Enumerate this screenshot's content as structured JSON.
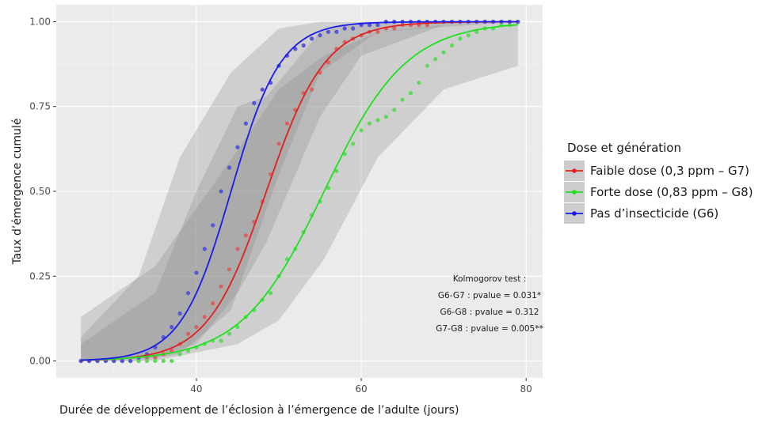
{
  "chart_data": {
    "type": "scatter",
    "xlabel": "Durée de développement de l’éclosion à l’émergence de l’adulte (jours)",
    "ylabel": "Taux d’émergence cumulé",
    "xlim": [
      23,
      82
    ],
    "ylim": [
      -0.05,
      1.05
    ],
    "x_ticks": [
      40,
      60,
      80
    ],
    "y_ticks": [
      0.0,
      0.25,
      0.5,
      0.75,
      1.0
    ],
    "y_tick_labels": [
      "0.00",
      "0.25",
      "0.50",
      "0.75",
      "1.00"
    ],
    "grid": true,
    "background": "#ebebeb",
    "legend": {
      "title": "Dose et génération",
      "position": "right"
    },
    "series": [
      {
        "name": "Faible dose (0,3 ppm – G7)",
        "color": "#e0201f",
        "point_color": "#d56565",
        "fit_midpoint": 48.5,
        "fit_slope": 0.28,
        "ci_band": [
          [
            26,
            0.0,
            0.05
          ],
          [
            35,
            0.01,
            0.2
          ],
          [
            40,
            0.05,
            0.5
          ],
          [
            45,
            0.2,
            0.75
          ],
          [
            48.5,
            0.35,
            0.78
          ],
          [
            55,
            0.72,
            0.97
          ],
          [
            60,
            0.9,
            1.0
          ],
          [
            70,
            0.99,
            1.0
          ],
          [
            79,
            1.0,
            1.0
          ]
        ],
        "points": [
          [
            26,
            0
          ],
          [
            27,
            0
          ],
          [
            28,
            0
          ],
          [
            29,
            0
          ],
          [
            30,
            0
          ],
          [
            31,
            0
          ],
          [
            32,
            0
          ],
          [
            33,
            0
          ],
          [
            34,
            0.01
          ],
          [
            35,
            0.01
          ],
          [
            36,
            0.02
          ],
          [
            37,
            0.03
          ],
          [
            38,
            0.05
          ],
          [
            39,
            0.08
          ],
          [
            40,
            0.1
          ],
          [
            41,
            0.13
          ],
          [
            42,
            0.17
          ],
          [
            43,
            0.22
          ],
          [
            44,
            0.27
          ],
          [
            45,
            0.33
          ],
          [
            46,
            0.37
          ],
          [
            47,
            0.41
          ],
          [
            48,
            0.47
          ],
          [
            49,
            0.55
          ],
          [
            50,
            0.64
          ],
          [
            51,
            0.7
          ],
          [
            52,
            0.74
          ],
          [
            53,
            0.79
          ],
          [
            54,
            0.8
          ],
          [
            55,
            0.85
          ],
          [
            56,
            0.88
          ],
          [
            57,
            0.92
          ],
          [
            58,
            0.94
          ],
          [
            59,
            0.95
          ],
          [
            60,
            0.96
          ],
          [
            61,
            0.97
          ],
          [
            62,
            0.97
          ],
          [
            63,
            0.98
          ],
          [
            64,
            0.98
          ],
          [
            65,
            0.99
          ],
          [
            66,
            0.99
          ],
          [
            67,
            0.99
          ],
          [
            68,
            0.99
          ],
          [
            69,
            1.0
          ],
          [
            70,
            1.0
          ],
          [
            71,
            1.0
          ],
          [
            72,
            1.0
          ],
          [
            73,
            1.0
          ],
          [
            74,
            1.0
          ],
          [
            75,
            1.0
          ],
          [
            76,
            1.0
          ],
          [
            77,
            1.0
          ],
          [
            78,
            1.0
          ],
          [
            79,
            1.0
          ]
        ]
      },
      {
        "name": "Forte dose (0,83 ppm – G8)",
        "color": "#1ee01e",
        "point_color": "#5ed95e",
        "fit_midpoint": 55.5,
        "fit_slope": 0.2,
        "ci_band": [
          [
            26,
            0.0,
            0.13
          ],
          [
            35,
            0.0,
            0.28
          ],
          [
            45,
            0.05,
            0.62
          ],
          [
            50,
            0.12,
            0.8
          ],
          [
            55.5,
            0.3,
            0.9
          ],
          [
            62,
            0.6,
            0.97
          ],
          [
            70,
            0.8,
            0.99
          ],
          [
            79,
            0.87,
            1.0
          ]
        ],
        "points": [
          [
            26,
            0
          ],
          [
            27,
            0
          ],
          [
            28,
            0
          ],
          [
            29,
            0
          ],
          [
            30,
            0
          ],
          [
            31,
            0
          ],
          [
            32,
            0
          ],
          [
            33,
            0
          ],
          [
            34,
            0
          ],
          [
            35,
            0
          ],
          [
            36,
            0
          ],
          [
            37,
            0
          ],
          [
            38,
            0.02
          ],
          [
            39,
            0.03
          ],
          [
            40,
            0.04
          ],
          [
            41,
            0.05
          ],
          [
            42,
            0.06
          ],
          [
            43,
            0.06
          ],
          [
            44,
            0.08
          ],
          [
            45,
            0.1
          ],
          [
            46,
            0.13
          ],
          [
            47,
            0.15
          ],
          [
            48,
            0.18
          ],
          [
            49,
            0.2
          ],
          [
            50,
            0.25
          ],
          [
            51,
            0.3
          ],
          [
            52,
            0.33
          ],
          [
            53,
            0.38
          ],
          [
            54,
            0.43
          ],
          [
            55,
            0.47
          ],
          [
            56,
            0.51
          ],
          [
            57,
            0.56
          ],
          [
            58,
            0.61
          ],
          [
            59,
            0.64
          ],
          [
            60,
            0.68
          ],
          [
            61,
            0.7
          ],
          [
            62,
            0.71
          ],
          [
            63,
            0.72
          ],
          [
            64,
            0.74
          ],
          [
            65,
            0.77
          ],
          [
            66,
            0.79
          ],
          [
            67,
            0.82
          ],
          [
            68,
            0.87
          ],
          [
            69,
            0.89
          ],
          [
            70,
            0.91
          ],
          [
            71,
            0.93
          ],
          [
            72,
            0.95
          ],
          [
            73,
            0.96
          ],
          [
            74,
            0.97
          ],
          [
            75,
            0.98
          ],
          [
            76,
            0.98
          ],
          [
            77,
            0.99
          ],
          [
            78,
            0.99
          ],
          [
            79,
            1.0
          ]
        ]
      },
      {
        "name": "Pas d’insecticide (G6)",
        "color": "#1a1aee",
        "point_color": "#5555d9",
        "fit_midpoint": 44.2,
        "fit_slope": 0.33,
        "ci_band": [
          [
            26,
            0.0,
            0.07
          ],
          [
            33,
            0.0,
            0.25
          ],
          [
            38,
            0.02,
            0.6
          ],
          [
            44.2,
            0.15,
            0.85
          ],
          [
            50,
            0.55,
            0.98
          ],
          [
            55,
            0.85,
            1.0
          ],
          [
            62,
            0.97,
            1.0
          ],
          [
            79,
            1.0,
            1.0
          ]
        ],
        "points": [
          [
            26,
            0
          ],
          [
            27,
            0
          ],
          [
            28,
            0
          ],
          [
            29,
            0
          ],
          [
            30,
            0
          ],
          [
            31,
            0
          ],
          [
            32,
            0
          ],
          [
            33,
            0.01
          ],
          [
            34,
            0.02
          ],
          [
            35,
            0.04
          ],
          [
            36,
            0.07
          ],
          [
            37,
            0.1
          ],
          [
            38,
            0.14
          ],
          [
            39,
            0.2
          ],
          [
            40,
            0.26
          ],
          [
            41,
            0.33
          ],
          [
            42,
            0.4
          ],
          [
            43,
            0.5
          ],
          [
            44,
            0.57
          ],
          [
            45,
            0.63
          ],
          [
            46,
            0.7
          ],
          [
            47,
            0.76
          ],
          [
            48,
            0.8
          ],
          [
            49,
            0.82
          ],
          [
            50,
            0.87
          ],
          [
            51,
            0.9
          ],
          [
            52,
            0.92
          ],
          [
            53,
            0.93
          ],
          [
            54,
            0.95
          ],
          [
            55,
            0.96
          ],
          [
            56,
            0.97
          ],
          [
            57,
            0.97
          ],
          [
            58,
            0.98
          ],
          [
            59,
            0.98
          ],
          [
            60,
            0.99
          ],
          [
            61,
            0.99
          ],
          [
            62,
            0.99
          ],
          [
            63,
            1.0
          ],
          [
            64,
            1.0
          ],
          [
            65,
            1.0
          ],
          [
            66,
            1.0
          ],
          [
            67,
            1.0
          ],
          [
            68,
            1.0
          ],
          [
            69,
            1.0
          ],
          [
            70,
            1.0
          ],
          [
            71,
            1.0
          ],
          [
            72,
            1.0
          ],
          [
            73,
            1.0
          ],
          [
            74,
            1.0
          ],
          [
            75,
            1.0
          ],
          [
            76,
            1.0
          ],
          [
            77,
            1.0
          ],
          [
            78,
            1.0
          ],
          [
            79,
            1.0
          ]
        ]
      }
    ],
    "annotations": [
      "Kolmogorov test :",
      "G6-G7 : pvalue = 0.031*",
      "G6-G8 : pvalue = 0.312",
      "G7-G8 : pvalue = 0.005**"
    ]
  }
}
